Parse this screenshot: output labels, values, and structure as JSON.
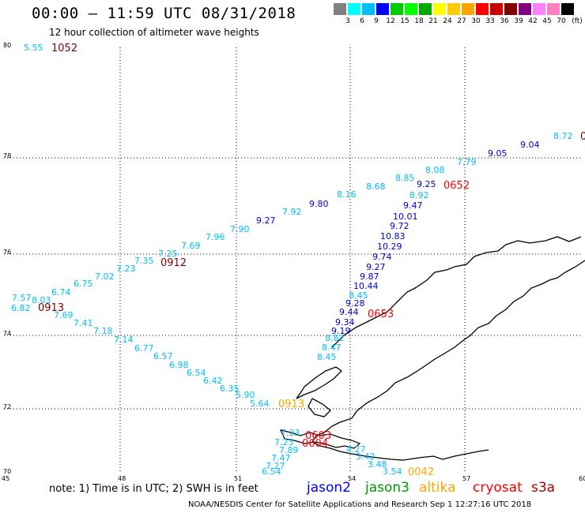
{
  "title": "00:00 – 11:59 UTC 08/31/2018",
  "subtitle": "12 hour collection of altimeter wave heights",
  "color_scale": {
    "labels": [
      "3",
      "6",
      "9",
      "12",
      "15",
      "18",
      "21",
      "24",
      "27",
      "30",
      "33",
      "36",
      "39",
      "42",
      "45",
      "70"
    ],
    "unit": "(ft)",
    "colors": [
      "#808080",
      "#00ffff",
      "#00bfff",
      "#0000ff",
      "#00cc00",
      "#00ff00",
      "#00aa00",
      "#ffff00",
      "#ffcc00",
      "#ffa500",
      "#ff0000",
      "#cc0000",
      "#800000",
      "#800080",
      "#ff80ff",
      "#ff80c0",
      "#000000"
    ]
  },
  "axes": {
    "x_ticks": [
      "45",
      "48",
      "51",
      "54",
      "57",
      "60"
    ],
    "y_ticks": [
      "70",
      "72",
      "74",
      "76",
      "78",
      "80"
    ]
  },
  "note": "note: 1) Time is in UTC; 2) SWH is in feet",
  "legend": [
    {
      "name": "jason2",
      "color": "#0000ff"
    },
    {
      "name": "jason3",
      "color": "#009900"
    },
    {
      "name": "altika",
      "color": "#ffa500"
    },
    {
      "name": "cryosat",
      "color": "#ff0000"
    },
    {
      "name": "s3a",
      "color": "#aa0000"
    }
  ],
  "footer": "NOAA/NESDIS Center for Satellite Applications and Research    Sep  1 12:27:16 UTC 2018",
  "wave_heights": [
    {
      "v": "5.55",
      "c": "#00bfff"
    },
    {
      "v": "8.72",
      "c": "#00bfff"
    },
    {
      "v": "9.04",
      "c": "#0000cc"
    },
    {
      "v": "9.05",
      "c": "#0000cc"
    },
    {
      "v": "7.79",
      "c": "#00bfff"
    },
    {
      "v": "8.08",
      "c": "#00bfff"
    },
    {
      "v": "8.85",
      "c": "#00bfff"
    },
    {
      "v": "9.25",
      "c": "#0000cc"
    },
    {
      "v": "8.68",
      "c": "#00bfff"
    },
    {
      "v": "8.16",
      "c": "#00bfff"
    },
    {
      "v": "9.80",
      "c": "#0000cc"
    },
    {
      "v": "7.92",
      "c": "#00bfff"
    },
    {
      "v": "9.27",
      "c": "#0000cc"
    },
    {
      "v": "7.90",
      "c": "#00bfff"
    },
    {
      "v": "7.96",
      "c": "#00bfff"
    },
    {
      "v": "7.69",
      "c": "#00bfff"
    },
    {
      "v": "7.25",
      "c": "#00bfff"
    },
    {
      "v": "7.35",
      "c": "#00bfff"
    },
    {
      "v": "7.23",
      "c": "#00bfff"
    },
    {
      "v": "7.02",
      "c": "#00bfff"
    },
    {
      "v": "6.75",
      "c": "#00bfff"
    },
    {
      "v": "6.74",
      "c": "#00bfff"
    },
    {
      "v": "7.57",
      "c": "#00bfff"
    },
    {
      "v": "8.03",
      "c": "#00bfff"
    },
    {
      "v": "6.82",
      "c": "#00bfff"
    },
    {
      "v": "7.69",
      "c": "#00bfff"
    },
    {
      "v": "7.41",
      "c": "#00bfff"
    },
    {
      "v": "7.18",
      "c": "#00bfff"
    },
    {
      "v": "7.14",
      "c": "#00bfff"
    },
    {
      "v": "6.77",
      "c": "#00bfff"
    },
    {
      "v": "6.57",
      "c": "#00bfff"
    },
    {
      "v": "6.98",
      "c": "#00bfff"
    },
    {
      "v": "6.54",
      "c": "#00bfff"
    },
    {
      "v": "6.42",
      "c": "#00bfff"
    },
    {
      "v": "6.35",
      "c": "#00bfff"
    },
    {
      "v": "5.90",
      "c": "#00bfff"
    },
    {
      "v": "5.64",
      "c": "#00bfff"
    },
    {
      "v": "8.92",
      "c": "#00bfff"
    },
    {
      "v": "9.47",
      "c": "#0000cc"
    },
    {
      "v": "10.01",
      "c": "#0000cc"
    },
    {
      "v": "9.72",
      "c": "#0000cc"
    },
    {
      "v": "10.83",
      "c": "#0000cc"
    },
    {
      "v": "10.29",
      "c": "#0000cc"
    },
    {
      "v": "9.74",
      "c": "#0000cc"
    },
    {
      "v": "9.27",
      "c": "#0000cc"
    },
    {
      "v": "9.87",
      "c": "#0000cc"
    },
    {
      "v": "10.44",
      "c": "#0000cc"
    },
    {
      "v": "8.45",
      "c": "#00bfff"
    },
    {
      "v": "9.28",
      "c": "#0000cc"
    },
    {
      "v": "9.44",
      "c": "#0000cc"
    },
    {
      "v": "9.34",
      "c": "#0000cc"
    },
    {
      "v": "9.19",
      "c": "#0000cc"
    },
    {
      "v": "8.82",
      "c": "#00bfff"
    },
    {
      "v": "8.47",
      "c": "#00bfff"
    },
    {
      "v": "8.45",
      "c": "#00bfff"
    },
    {
      "v": "7.23",
      "c": "#00bfff"
    },
    {
      "v": "7.23",
      "c": "#00bfff"
    },
    {
      "v": "7.89",
      "c": "#00bfff"
    },
    {
      "v": "7.47",
      "c": "#00bfff"
    },
    {
      "v": "7.27",
      "c": "#00bfff"
    },
    {
      "v": "6.54",
      "c": "#00bfff"
    },
    {
      "v": "4.27",
      "c": "#00bfff"
    },
    {
      "v": "3.42",
      "c": "#00bfff"
    },
    {
      "v": "3.48",
      "c": "#00bfff"
    },
    {
      "v": "3.54",
      "c": "#00bfff"
    }
  ],
  "time_labels": [
    {
      "v": "1052",
      "c": "#800000"
    },
    {
      "v": "0912",
      "c": "#800000"
    },
    {
      "v": "0913",
      "c": "#800000"
    },
    {
      "v": "0652",
      "c": "#ff0000"
    },
    {
      "v": "0653",
      "c": "#ff0000"
    },
    {
      "v": "0913",
      "c": "#ffa500"
    },
    {
      "v": "0042",
      "c": "#ffa500"
    },
    {
      "v": "0604",
      "c": "#ff0000"
    },
    {
      "v": "0603",
      "c": "#ff0000"
    },
    {
      "v": "0",
      "c": "#800000"
    }
  ]
}
